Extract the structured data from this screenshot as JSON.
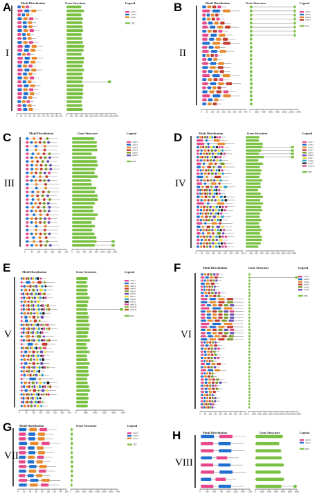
{
  "figure": {
    "panels": [
      {
        "label": "A",
        "group": "I",
        "motif_header": "Motif Distribution",
        "gene_header": "Gene Structure",
        "legend_header": "Legend",
        "legend_items": [
          "motif 1",
          "motif 2",
          "motif 3",
          "CDS"
        ],
        "motif_axis": [
          "0",
          "20",
          "40",
          "60",
          "80",
          "100",
          "120",
          "140",
          "160",
          "180",
          "200"
        ],
        "gene_axis": [
          "0",
          "200",
          "400",
          "600",
          "800",
          "1000",
          "1200",
          "1400",
          "1600",
          "1800",
          "2000"
        ]
      },
      {
        "label": "B",
        "group": "II",
        "motif_header": "Motif Distribution",
        "gene_header": "Gene Structure",
        "legend_header": "Legend",
        "legend_items": [
          "motif 1",
          "motif 2",
          "motif 3",
          "motif 4",
          "CDS"
        ],
        "motif_axis": [
          "0",
          "50",
          "100",
          "150",
          "200",
          "250",
          "300",
          "350",
          "400"
        ],
        "gene_axis": [
          "0",
          "2000",
          "4000",
          "6000",
          "8000",
          "10000",
          "12000",
          "14000"
        ]
      },
      {
        "label": "C",
        "group": "III",
        "motif_header": "Motif Distribution",
        "gene_header": "Gene Structure",
        "legend_header": "Legend",
        "legend_items": [
          "motif 1",
          "motif 2",
          "motif 3",
          "motif 4",
          "motif 5",
          "motif 6",
          "CDS"
        ],
        "motif_axis": [
          "0",
          "50",
          "100",
          "150",
          "200",
          "250",
          "300"
        ],
        "gene_axis": [
          "0",
          "200",
          "400",
          "600",
          "800",
          "1000",
          "1200",
          "1400"
        ]
      },
      {
        "label": "D",
        "group": "IV",
        "motif_header": "Motif Distribution",
        "gene_header": "Gene Structure",
        "legend_header": "Legend",
        "legend_items": [
          "motif 1",
          "motif 2",
          "motif 3",
          "motif 4",
          "motif 5",
          "motif 6",
          "motif 7",
          "motif 8",
          "motif 9",
          "motif 10",
          "CDS"
        ],
        "motif_axis": [
          "0",
          "50",
          "100",
          "150",
          "200",
          "250",
          "300",
          "350",
          "400"
        ],
        "gene_axis": [
          "0",
          "200",
          "400",
          "600",
          "800",
          "1000",
          "1200",
          "1400",
          "1600",
          "1800"
        ]
      },
      {
        "label": "E",
        "group": "V",
        "motif_header": "Motif Distribution",
        "gene_header": "Gene Structure",
        "legend_header": "Legend",
        "legend_items": [
          "motif 1",
          "motif 2",
          "motif 3",
          "motif 4",
          "motif 5",
          "motif 6",
          "motif 7",
          "motif 8",
          "motif 9",
          "motif 10",
          "motif 11",
          "motif 12",
          "CDS"
        ],
        "motif_axis": [
          "0",
          "50",
          "100",
          "150",
          "200",
          "250",
          "300",
          "350"
        ],
        "gene_axis": [
          "0",
          "1000",
          "2000",
          "3000",
          "4000",
          "5000"
        ]
      },
      {
        "label": "F",
        "group": "VI",
        "motif_header": "Motif Distribution",
        "gene_header": "Gene Structure",
        "legend_header": "Legend",
        "legend_items": [
          "motif 1",
          "motif 2",
          "motif 3",
          "motif 4",
          "motif 5",
          "motif 6",
          "CDS"
        ],
        "motif_axis": [
          "0",
          "50",
          "100",
          "150",
          "200",
          "250",
          "300",
          "350",
          "400",
          "450"
        ],
        "gene_axis": [
          "0",
          "2000",
          "4000",
          "6000",
          "8000",
          "10000",
          "12000",
          "14000",
          "16000",
          "18000"
        ]
      },
      {
        "label": "G",
        "group": "VII",
        "motif_header": "Motif Distribution",
        "gene_header": "Gene Structure",
        "legend_header": "Legend",
        "legend_items": [
          "motif 1",
          "motif 2",
          "motif 3",
          "CDS"
        ],
        "motif_axis": [
          "0",
          "20",
          "40",
          "60",
          "80",
          "100",
          "120",
          "140",
          "160"
        ],
        "gene_axis": [
          "0",
          "1000",
          "2000",
          "3000",
          "4000",
          "5000",
          "6000",
          "7000"
        ]
      },
      {
        "label": "H",
        "group": "VIII",
        "motif_header": "Motif Distribution",
        "gene_header": "Gene Structure",
        "legend_header": "Legend",
        "legend_items": [
          "motif 1",
          "motif 2",
          "CDS"
        ],
        "motif_axis": [
          "0",
          "250",
          "500",
          "750",
          "1000",
          "1250",
          "1500",
          "1750"
        ],
        "gene_axis": [
          "0",
          "1000",
          "2000",
          "3000",
          "4000",
          "5000",
          "6000"
        ]
      }
    ],
    "colors": {
      "cds": "#7ac143",
      "line": "#8c8c8c",
      "black": "#111111",
      "motif_palette": [
        "#e8478b",
        "#1f6fd1",
        "#e8892b",
        "#c0392b",
        "#7a9a2a",
        "#6a4fb3",
        "#f1d52f",
        "#2aa3c9",
        "#222222",
        "#d64b9a",
        "#8bc34a",
        "#b5651d"
      ]
    }
  }
}
